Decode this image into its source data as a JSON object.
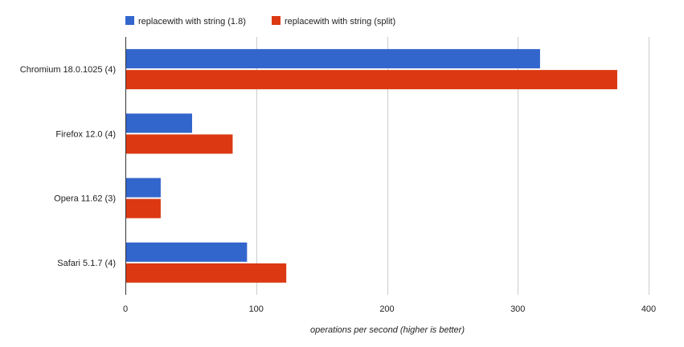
{
  "chart_data": {
    "type": "bar",
    "orientation": "horizontal",
    "categories": [
      "Chromium 18.0.1025 (4)",
      "Firefox 12.0 (4)",
      "Opera 11.62 (3)",
      "Safari 5.1.7 (4)"
    ],
    "series": [
      {
        "name": "replacewith with string (1.8)",
        "color": "#3366cc",
        "values": [
          317,
          51,
          27,
          93
        ]
      },
      {
        "name": "replacewith with string (split)",
        "color": "#dc3912",
        "values": [
          376,
          82,
          27,
          123
        ]
      }
    ],
    "xlabel": "operations per second (higher is better)",
    "ylabel": "",
    "xlim": [
      0,
      400
    ],
    "xticks": [
      0,
      100,
      200,
      300,
      400
    ],
    "grid": true,
    "legend": "top-left"
  }
}
